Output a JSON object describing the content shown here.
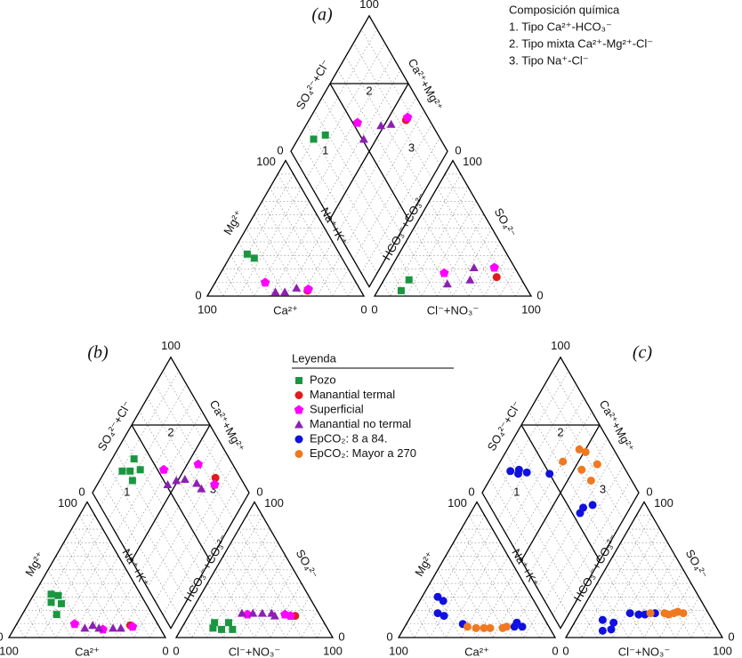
{
  "chart_data": [
    {
      "type": "piper",
      "panel_label": "(a)",
      "grid": true,
      "annotations": {
        "title": "Composición química",
        "items": [
          "1. Tipo Ca²⁺-HCO₃⁻",
          "2. Tipo mixta Ca²⁺-Mg²⁺-Cl⁻",
          "3. Tipo Na⁺-Cl⁻"
        ]
      },
      "region_labels": [
        "1",
        "2",
        "3"
      ],
      "axes": {
        "mg": {
          "label": "Mg²⁺",
          "ticks": [
            0,
            100
          ]
        },
        "ca": {
          "label": "Ca²⁺",
          "ticks": [
            0,
            100
          ]
        },
        "nak": {
          "label": "Na⁺+K⁺"
        },
        "cl": {
          "label": "Cl⁻+NO₃⁻",
          "ticks": [
            0,
            100
          ]
        },
        "so4": {
          "label": "SO₄²⁻",
          "ticks": [
            0,
            100
          ]
        },
        "hco3": {
          "label": "HCO₃⁻+CO₃²⁻"
        },
        "so4cl": {
          "label": "SO₄²⁻+Cl⁻",
          "ticks": [
            0,
            100
          ]
        },
        "camg": {
          "label": "Ca²⁺+Mg²⁺",
          "ticks": [
            0
          ]
        }
      },
      "series": [
        {
          "color": "#1a9641",
          "marker": "square",
          "ca": [
            59,
            56
          ],
          "mg": [
            31,
            28
          ],
          "cl": [
            15,
            16
          ],
          "so4": [
            4,
            12
          ]
        },
        {
          "color": "#e41a1c",
          "marker": "circle",
          "ca": [
            34
          ],
          "mg": [
            4
          ],
          "cl": [
            71
          ],
          "so4": [
            14
          ]
        },
        {
          "color": "#ff00ff",
          "marker": "pentagon",
          "ca": [
            58,
            33
          ],
          "mg": [
            10,
            5
          ],
          "cl": [
            36,
            66
          ],
          "so4": [
            17,
            21
          ]
        },
        {
          "color": "#8e1fb4",
          "marker": "triangle",
          "ca": [
            55,
            49,
            40
          ],
          "mg": [
            3,
            3,
            6
          ],
          "cl": [
            42,
            55,
            53
          ],
          "so4": [
            9,
            12,
            21
          ]
        }
      ]
    },
    {
      "type": "piper",
      "panel_label": "(b)",
      "grid": true,
      "legend_title": "Leyenda",
      "region_labels": [
        "1",
        "2",
        "3"
      ],
      "axes": {
        "mg": {
          "label": "Mg²⁺",
          "ticks": [
            0,
            100
          ]
        },
        "ca": {
          "label": "Ca²⁺",
          "ticks": [
            0,
            100
          ]
        },
        "nak": {
          "label": "Na⁺+K⁺"
        },
        "cl": {
          "label": "Cl⁻+NO₃⁻",
          "ticks": [
            0,
            100
          ]
        },
        "so4": {
          "label": "SO₄²⁻",
          "ticks": [
            0,
            100
          ]
        },
        "hco3": {
          "label": "HCO₃⁻+CO₃²⁻"
        },
        "so4cl": {
          "label": "SO₄²⁻+Cl⁻",
          "ticks": [
            0,
            100
          ]
        },
        "camg": {
          "label": "Ca²⁺+Mg²⁺",
          "ticks": [
            0
          ]
        }
      },
      "series": [
        {
          "name": "Pozo",
          "color": "#1a9641",
          "marker": "square",
          "ca": [
            57,
            53,
            60,
            54,
            61
          ],
          "mg": [
            32,
            31,
            26,
            25,
            17
          ],
          "cl": [
            20,
            26,
            33,
            19,
            28
          ],
          "so4": [
            7,
            6,
            6,
            11,
            11
          ]
        },
        {
          "name": "Manantial termal",
          "color": "#e41a1c",
          "marker": "circle",
          "ca": [
            18
          ],
          "mg": [
            9
          ],
          "cl": [
            68
          ],
          "so4": [
            16
          ]
        },
        {
          "name": "Superficial",
          "color": "#ff00ff",
          "marker": "pentagon",
          "ca": [
            53,
            37,
            17
          ],
          "mg": [
            10,
            6,
            8
          ],
          "cl": [
            37,
            61,
            65
          ],
          "so4": [
            17,
            17,
            16
          ]
        },
        {
          "name": "Manantial no termal",
          "color": "#8e1fb4",
          "marker": "triangle",
          "ca": [
            48,
            42,
            39,
            30,
            25
          ],
          "mg": [
            7,
            9,
            7,
            7,
            7
          ],
          "cl": [
            33,
            40,
            46,
            52,
            55
          ],
          "so4": [
            18,
            18,
            18,
            18,
            16
          ]
        }
      ]
    },
    {
      "type": "piper",
      "panel_label": "(c)",
      "grid": true,
      "region_labels": [
        "1",
        "2",
        "3"
      ],
      "axes": {
        "mg": {
          "label": "Mg²⁺",
          "ticks": [
            0,
            100
          ]
        },
        "ca": {
          "label": "Ca²⁺",
          "ticks": [
            0,
            100
          ]
        },
        "nak": {
          "label": "Na⁺+K⁺"
        },
        "cl": {
          "label": "Cl⁻+NO₃⁻",
          "ticks": [
            0,
            100
          ]
        },
        "so4": {
          "label": "SO₄²⁻",
          "ticks": [
            0,
            100
          ]
        },
        "hco3": {
          "label": "HCO₃⁻+CO₃²⁻"
        },
        "so4cl": {
          "label": "SO₄²⁻+Cl⁻",
          "ticks": [
            0,
            100
          ]
        },
        "camg": {
          "label": "Ca²⁺+Mg²⁺",
          "ticks": [
            0
          ]
        }
      },
      "series": [
        {
          "name": "EpCO₂: 8 a 84.",
          "color": "#1010e0",
          "marker": "circle",
          "ca": [
            60,
            58,
            66,
            63,
            54,
            19,
            22,
            17
          ],
          "mg": [
            30,
            27,
            18,
            16,
            10,
            11,
            8,
            8
          ],
          "cl": [
            21,
            26,
            17,
            25,
            32,
            38,
            42,
            48
          ],
          "so4": [
            5,
            6,
            13,
            11,
            18,
            17,
            17,
            18
          ]
        },
        {
          "name": "EpCO₂: Mayor a 270",
          "color": "#f07820",
          "marker": "circle",
          "ca": [
            52,
            47,
            42,
            30,
            27,
            38
          ],
          "mg": [
            8,
            7,
            7,
            7,
            8,
            7
          ],
          "cl": [
            45,
            60,
            62,
            66,
            57,
            54
          ],
          "so4": [
            18,
            18,
            19,
            18,
            17,
            18
          ]
        }
      ]
    }
  ]
}
